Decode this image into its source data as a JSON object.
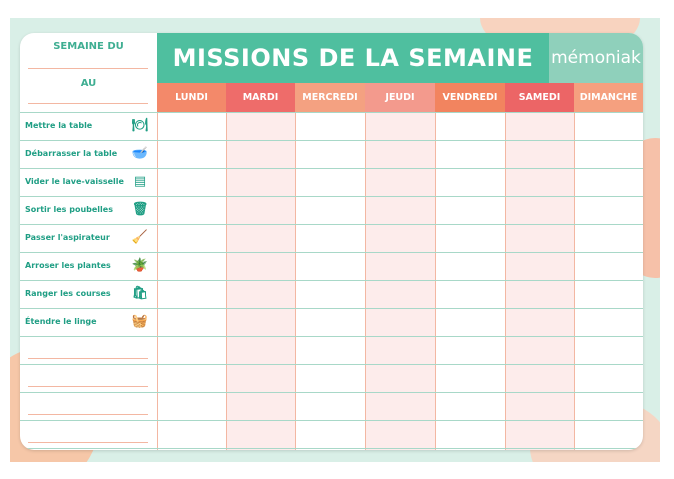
{
  "header": {
    "week_from": "SEMAINE DU",
    "week_to": "AU",
    "title": "MISSIONS DE LA SEMAINE",
    "logo": "mémoniak"
  },
  "days": [
    {
      "label": "LUNDI",
      "color": "#f3896a",
      "shade": false
    },
    {
      "label": "MARDI",
      "color": "#ee6c6a",
      "shade": true
    },
    {
      "label": "MERCREDI",
      "color": "#f4a181",
      "shade": false
    },
    {
      "label": "JEUDI",
      "color": "#f39a8d",
      "shade": true
    },
    {
      "label": "VENDREDI",
      "color": "#f2845f",
      "shade": false
    },
    {
      "label": "SAMEDI",
      "color": "#ec6566",
      "shade": true
    },
    {
      "label": "DIMANCHE",
      "color": "#f5a07f",
      "shade": false
    }
  ],
  "tasks": [
    {
      "label": "Mettre la table",
      "icon": "plate-icon",
      "glyph": "🍽"
    },
    {
      "label": "Débarrasser la table",
      "icon": "dishes-icon",
      "glyph": "🥣"
    },
    {
      "label": "Vider le lave-vaisselle",
      "icon": "dishwasher-icon",
      "glyph": "▤"
    },
    {
      "label": "Sortir les poubelles",
      "icon": "trash-bin-icon",
      "glyph": "🗑"
    },
    {
      "label": "Passer l'aspirateur",
      "icon": "vacuum-icon",
      "glyph": "🧹"
    },
    {
      "label": "Arroser les plantes",
      "icon": "plant-icon",
      "glyph": "🪴"
    },
    {
      "label": "Ranger les courses",
      "icon": "grocery-bag-icon",
      "glyph": "🛍"
    },
    {
      "label": "Étendre le linge",
      "icon": "laundry-icon",
      "glyph": "🧺"
    }
  ],
  "blank_rows": 4,
  "colors": {
    "teal": "#4fbf9f",
    "logo_bg": "#8fd0bb",
    "shade": "#fdeceb",
    "row_line": "#a8d8c8"
  }
}
